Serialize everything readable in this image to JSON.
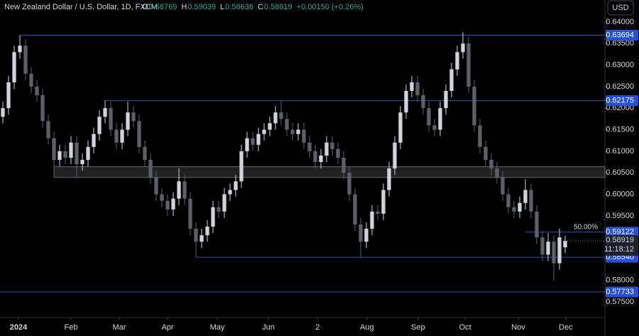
{
  "chart_data": {
    "type": "candlestick",
    "header": {
      "symbol": "New Zealand Dollar / U.S. Dollar, 1D, FXCM",
      "ohlc": [
        {
          "key": "O",
          "value": "0.58769"
        },
        {
          "key": "H",
          "value": "0.59039"
        },
        {
          "key": "L",
          "value": "0.58636"
        },
        {
          "key": "C",
          "value": "0.58919"
        }
      ],
      "change": "+0.00150 (+0.26%)"
    },
    "currency": "USD",
    "up_color": "#d1d4dc",
    "down_color": "#5d606b",
    "level_color": "#3b4bb8",
    "label_color": "#2650d8",
    "grid": false,
    "ylim": [
      0.5714,
      0.6451
    ],
    "xlim": [
      -0.5,
      106
    ],
    "yticks": [
      {
        "value": 0.575,
        "label": "0.57500"
      },
      {
        "value": 0.58,
        "label": "0.58000"
      },
      {
        "value": 0.585,
        "label": "0.58500"
      },
      {
        "value": 0.59,
        "label": "0.59000"
      },
      {
        "value": 0.595,
        "label": "0.59500"
      },
      {
        "value": 0.6,
        "label": "0.60000"
      },
      {
        "value": 0.605,
        "label": "0.60500"
      },
      {
        "value": 0.61,
        "label": "0.61000"
      },
      {
        "value": 0.615,
        "label": "0.61500"
      },
      {
        "value": 0.62,
        "label": "0.62000"
      },
      {
        "value": 0.625,
        "label": "0.62500"
      },
      {
        "value": 0.63,
        "label": "0.63000"
      },
      {
        "value": 0.635,
        "label": "0.63500"
      },
      {
        "value": 0.64,
        "label": "0.64000"
      }
    ],
    "xticks": [
      {
        "value": 2.75,
        "label": "2024"
      },
      {
        "value": 12,
        "label": "Feb"
      },
      {
        "value": 20.5,
        "label": "Mar"
      },
      {
        "value": 29,
        "label": "Apr"
      },
      {
        "value": 37.75,
        "label": "May"
      },
      {
        "value": 46.75,
        "label": "Jun"
      },
      {
        "value": 55.4,
        "label": "2"
      },
      {
        "value": 64.1,
        "label": "Aug"
      },
      {
        "value": 73.1,
        "label": "Sep"
      },
      {
        "value": 81.4,
        "label": "Oct"
      },
      {
        "value": 90.75,
        "label": "Nov"
      },
      {
        "value": 99.1,
        "label": "Dec"
      }
    ],
    "open": [
      0.618,
      0.62,
      0.626,
      0.633,
      0.6345,
      0.628,
      0.625,
      0.623,
      0.617,
      0.613,
      0.608,
      0.61,
      0.6085,
      0.612,
      0.607,
      0.608,
      0.611,
      0.614,
      0.618,
      0.62,
      0.615,
      0.612,
      0.615,
      0.619,
      0.617,
      0.611,
      0.608,
      0.604,
      0.6,
      0.5985,
      0.5965,
      0.599,
      0.603,
      0.599,
      0.592,
      0.589,
      0.5905,
      0.5925,
      0.597,
      0.596,
      0.6,
      0.601,
      0.603,
      0.61,
      0.613,
      0.6115,
      0.614,
      0.615,
      0.6165,
      0.619,
      0.6175,
      0.615,
      0.614,
      0.615,
      0.612,
      0.61,
      0.6075,
      0.609,
      0.612,
      0.6105,
      0.6085,
      0.605,
      0.6,
      0.593,
      0.589,
      0.592,
      0.596,
      0.5955,
      0.601,
      0.606,
      0.612,
      0.619,
      0.624,
      0.626,
      0.623,
      0.62,
      0.616,
      0.615,
      0.62,
      0.624,
      0.629,
      0.633,
      0.635,
      0.625,
      0.616,
      0.611,
      0.608,
      0.606,
      0.604,
      0.6,
      0.597,
      0.596,
      0.598,
      0.601,
      0.596,
      0.59,
      0.586,
      0.589,
      0.584,
      0.58769
    ],
    "high": [
      0.6215,
      0.6275,
      0.6345,
      0.6369,
      0.636,
      0.6295,
      0.6265,
      0.6245,
      0.6185,
      0.6145,
      0.6115,
      0.6115,
      0.6135,
      0.6135,
      0.6095,
      0.6125,
      0.6155,
      0.6195,
      0.6218,
      0.6215,
      0.6165,
      0.6165,
      0.6215,
      0.6205,
      0.6185,
      0.6125,
      0.6095,
      0.6055,
      0.6015,
      0.6,
      0.6005,
      0.606,
      0.6045,
      0.6005,
      0.5935,
      0.592,
      0.594,
      0.5985,
      0.5985,
      0.6015,
      0.6025,
      0.6045,
      0.6115,
      0.6145,
      0.6145,
      0.6155,
      0.6165,
      0.618,
      0.6205,
      0.6218,
      0.619,
      0.6165,
      0.6165,
      0.6165,
      0.6135,
      0.6115,
      0.6105,
      0.6135,
      0.6135,
      0.612,
      0.61,
      0.6065,
      0.6015,
      0.5945,
      0.5935,
      0.5975,
      0.5975,
      0.6025,
      0.6075,
      0.6135,
      0.6205,
      0.6255,
      0.6275,
      0.6275,
      0.6245,
      0.6215,
      0.6175,
      0.6215,
      0.6255,
      0.6305,
      0.6345,
      0.6376,
      0.6365,
      0.6265,
      0.6175,
      0.6125,
      0.6095,
      0.6075,
      0.6055,
      0.6015,
      0.5985,
      0.5995,
      0.6035,
      0.6025,
      0.5975,
      0.5915,
      0.591,
      0.5905,
      0.592,
      0.59039
    ],
    "low": [
      0.6165,
      0.6185,
      0.6245,
      0.6315,
      0.6265,
      0.6235,
      0.6215,
      0.6155,
      0.6115,
      0.6065,
      0.6065,
      0.607,
      0.607,
      0.604,
      0.6055,
      0.6065,
      0.6095,
      0.6125,
      0.6165,
      0.6135,
      0.6105,
      0.6105,
      0.6135,
      0.6155,
      0.6095,
      0.6065,
      0.6025,
      0.5985,
      0.597,
      0.595,
      0.595,
      0.5975,
      0.5975,
      0.5905,
      0.5854,
      0.5875,
      0.589,
      0.591,
      0.5945,
      0.5945,
      0.5985,
      0.5995,
      0.6015,
      0.6085,
      0.61,
      0.61,
      0.6125,
      0.6135,
      0.615,
      0.616,
      0.6135,
      0.6125,
      0.6125,
      0.6105,
      0.6085,
      0.606,
      0.606,
      0.6075,
      0.609,
      0.607,
      0.6035,
      0.5985,
      0.5915,
      0.5854,
      0.5875,
      0.5905,
      0.594,
      0.594,
      0.5995,
      0.6045,
      0.6105,
      0.6175,
      0.6225,
      0.6215,
      0.6185,
      0.6145,
      0.6135,
      0.6135,
      0.6185,
      0.6225,
      0.6275,
      0.6315,
      0.6235,
      0.6145,
      0.6095,
      0.6065,
      0.6045,
      0.6025,
      0.5985,
      0.5955,
      0.5945,
      0.5945,
      0.5965,
      0.5945,
      0.5885,
      0.5845,
      0.5845,
      0.58,
      0.5825,
      0.58636
    ],
    "close": [
      0.62,
      0.626,
      0.633,
      0.6345,
      0.628,
      0.625,
      0.623,
      0.617,
      0.613,
      0.608,
      0.61,
      0.6085,
      0.612,
      0.607,
      0.608,
      0.611,
      0.614,
      0.618,
      0.62,
      0.615,
      0.612,
      0.615,
      0.619,
      0.617,
      0.611,
      0.608,
      0.604,
      0.6,
      0.5985,
      0.5965,
      0.599,
      0.603,
      0.599,
      0.592,
      0.589,
      0.5905,
      0.5925,
      0.597,
      0.596,
      0.6,
      0.601,
      0.603,
      0.61,
      0.613,
      0.6115,
      0.614,
      0.615,
      0.6165,
      0.619,
      0.6175,
      0.615,
      0.614,
      0.615,
      0.612,
      0.61,
      0.6075,
      0.609,
      0.612,
      0.6105,
      0.6085,
      0.605,
      0.6,
      0.593,
      0.589,
      0.592,
      0.596,
      0.5955,
      0.601,
      0.606,
      0.612,
      0.619,
      0.624,
      0.626,
      0.623,
      0.62,
      0.616,
      0.615,
      0.62,
      0.624,
      0.629,
      0.633,
      0.635,
      0.625,
      0.616,
      0.611,
      0.608,
      0.606,
      0.604,
      0.6,
      0.597,
      0.596,
      0.598,
      0.601,
      0.596,
      0.59,
      0.586,
      0.589,
      0.584,
      0.59,
      0.58919
    ],
    "zone": {
      "low": 0.6039,
      "high": 0.6064,
      "start": 9
    },
    "levels": [
      {
        "value": 0.63694,
        "label": "0.63694",
        "start": 3
      },
      {
        "value": 0.62175,
        "label": "0.62175",
        "start": 18
      },
      {
        "value": 0.59122,
        "label": "0.59122",
        "start": 92,
        "annotation": "50.00%"
      },
      {
        "value": 0.5854,
        "label": "0.58540",
        "start": 34
      },
      {
        "value": 0.57733,
        "label": "0.57733"
      }
    ],
    "last_price": {
      "value": 0.58919,
      "label": "0.58919",
      "countdown": "11:18:12"
    }
  }
}
